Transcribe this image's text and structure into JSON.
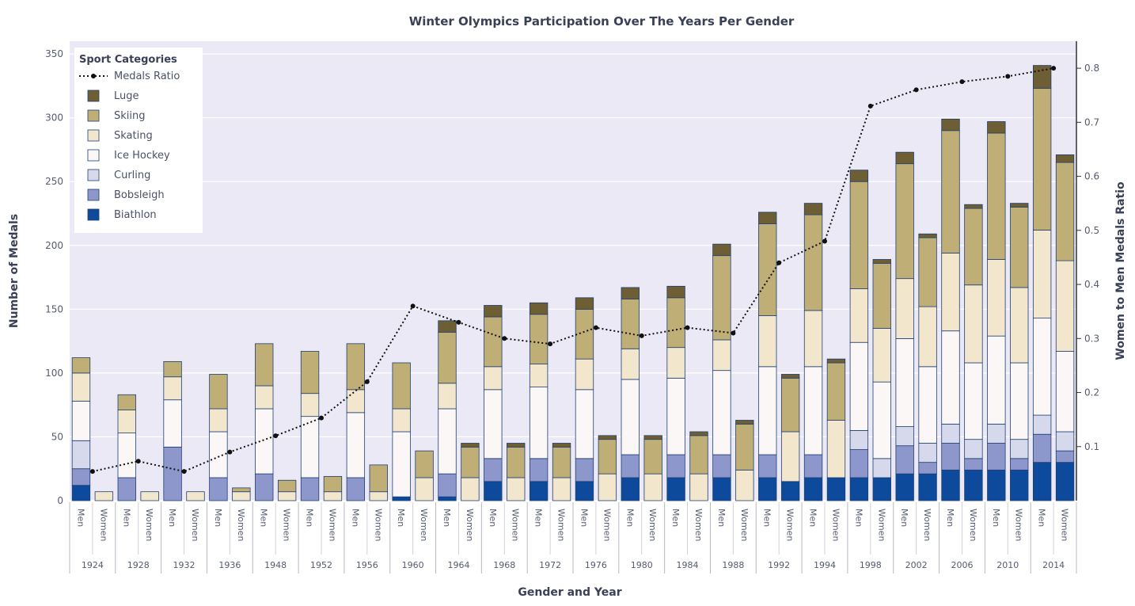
{
  "chart_data": {
    "type": "bar",
    "stacked": true,
    "title": "Winter Olympics Participation Over The Years Per Gender",
    "xlabel": "Gender and Year",
    "ylabel": "Number of Medals",
    "y2label": "Women to Men Medals Ratio",
    "ylim": [
      0,
      360
    ],
    "y2lim": [
      0,
      0.85
    ],
    "yticks": [
      0,
      50,
      100,
      150,
      200,
      250,
      300,
      350
    ],
    "y2ticks": [
      0.1,
      0.2,
      0.3,
      0.4,
      0.5,
      0.6,
      0.7,
      0.8
    ],
    "y2tick_labels": [
      "0.1",
      "0.2",
      "0.3",
      "0.4",
      "0.5",
      "0.6",
      "0.7",
      "0.8"
    ],
    "grid": true,
    "legend_position": "top-left",
    "legend_title": "Sport Categories",
    "years": [
      "1924",
      "1928",
      "1932",
      "1936",
      "1948",
      "1952",
      "1956",
      "1960",
      "1964",
      "1968",
      "1972",
      "1976",
      "1980",
      "1984",
      "1988",
      "1992",
      "1994",
      "1998",
      "2002",
      "2006",
      "2010",
      "2014"
    ],
    "genders": [
      "Men",
      "Women"
    ],
    "categories": [
      "Men 1924",
      "Women 1924",
      "Men 1928",
      "Women 1928",
      "Men 1932",
      "Women 1932",
      "Men 1936",
      "Women 1936",
      "Men 1948",
      "Women 1948",
      "Men 1952",
      "Women 1952",
      "Men 1956",
      "Women 1956",
      "Men 1960",
      "Women 1960",
      "Men 1964",
      "Women 1964",
      "Men 1968",
      "Women 1968",
      "Men 1972",
      "Women 1972",
      "Men 1976",
      "Women 1976",
      "Men 1980",
      "Women 1980",
      "Men 1984",
      "Women 1984",
      "Men 1988",
      "Women 1988",
      "Men 1992",
      "Women 1992",
      "Men 1994",
      "Women 1994",
      "Men 1998",
      "Women 1998",
      "Men 2002",
      "Women 2002",
      "Men 2006",
      "Women 2006",
      "Men 2010",
      "Women 2010",
      "Men 2014",
      "Women 2014"
    ],
    "series": [
      {
        "name": "Biathlon",
        "color": "#0d4a9c",
        "values": [
          12,
          0,
          0,
          0,
          0,
          0,
          0,
          0,
          0,
          0,
          0,
          0,
          0,
          0,
          3,
          0,
          3,
          0,
          15,
          0,
          15,
          0,
          15,
          0,
          18,
          0,
          18,
          0,
          18,
          0,
          18,
          15,
          18,
          18,
          18,
          18,
          21,
          21,
          24,
          24,
          24,
          24,
          30,
          30
        ]
      },
      {
        "name": "Bobsleigh",
        "color": "#8e97cc",
        "values": [
          13,
          0,
          18,
          0,
          42,
          0,
          18,
          0,
          21,
          0,
          18,
          0,
          18,
          0,
          0,
          0,
          18,
          0,
          18,
          0,
          18,
          0,
          18,
          0,
          18,
          0,
          18,
          0,
          18,
          0,
          18,
          0,
          18,
          0,
          22,
          0,
          22,
          9,
          21,
          9,
          21,
          9,
          22,
          9
        ]
      },
      {
        "name": "Curling",
        "color": "#d6d9eb",
        "values": [
          22,
          0,
          0,
          0,
          0,
          0,
          0,
          0,
          0,
          0,
          0,
          0,
          0,
          0,
          0,
          0,
          0,
          0,
          0,
          0,
          0,
          0,
          0,
          0,
          0,
          0,
          0,
          0,
          0,
          0,
          0,
          0,
          0,
          0,
          15,
          15,
          15,
          15,
          15,
          15,
          15,
          15,
          15,
          15
        ]
      },
      {
        "name": "Ice Hockey",
        "color": "#faf7f6",
        "values": [
          31,
          0,
          35,
          0,
          37,
          0,
          36,
          0,
          51,
          0,
          48,
          0,
          51,
          0,
          51,
          0,
          51,
          0,
          54,
          0,
          56,
          0,
          54,
          0,
          59,
          0,
          60,
          0,
          66,
          0,
          69,
          0,
          69,
          0,
          69,
          60,
          69,
          60,
          73,
          60,
          69,
          60,
          76,
          63
        ]
      },
      {
        "name": "Skating",
        "color": "#f2e6cc",
        "values": [
          22,
          7,
          18,
          7,
          18,
          7,
          18,
          7,
          18,
          7,
          18,
          7,
          18,
          7,
          18,
          18,
          20,
          18,
          18,
          18,
          18,
          18,
          24,
          21,
          24,
          21,
          24,
          21,
          24,
          24,
          40,
          39,
          44,
          45,
          42,
          42,
          47,
          47,
          61,
          61,
          60,
          59,
          69,
          71
        ]
      },
      {
        "name": "Skiing",
        "color": "#bfae76",
        "values": [
          12,
          0,
          12,
          0,
          12,
          0,
          27,
          3,
          33,
          9,
          33,
          12,
          36,
          21,
          36,
          21,
          40,
          24,
          39,
          24,
          39,
          24,
          39,
          27,
          39,
          27,
          39,
          30,
          66,
          36,
          72,
          42,
          75,
          45,
          84,
          51,
          90,
          54,
          96,
          60,
          99,
          63,
          111,
          77
        ]
      },
      {
        "name": "Luge",
        "color": "#6e5e33",
        "values": [
          0,
          0,
          0,
          0,
          0,
          0,
          0,
          0,
          0,
          0,
          0,
          0,
          0,
          0,
          0,
          0,
          9,
          3,
          9,
          3,
          9,
          3,
          9,
          3,
          9,
          3,
          9,
          3,
          9,
          3,
          9,
          3,
          9,
          3,
          9,
          3,
          9,
          3,
          9,
          3,
          9,
          3,
          18,
          6
        ]
      }
    ],
    "line": {
      "name": "Medals Ratio",
      "axis": "y2",
      "color": "#111111",
      "style": "dotted",
      "values": [
        0.054,
        0.073,
        0.054,
        0.09,
        0.12,
        0.153,
        0.22,
        0.36,
        0.33,
        0.3,
        0.29,
        0.32,
        0.305,
        0.32,
        0.31,
        0.44,
        0.48,
        0.73,
        0.76,
        0.775,
        0.785,
        0.8
      ]
    }
  }
}
